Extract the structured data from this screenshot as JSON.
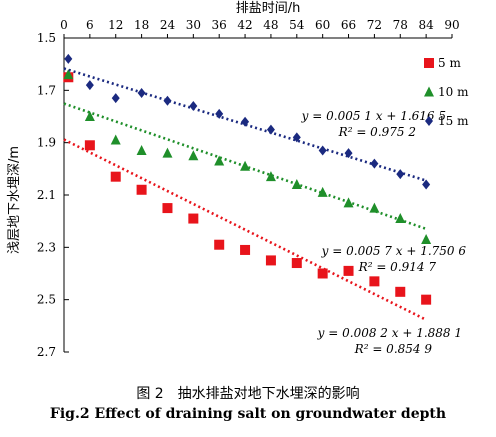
{
  "chart_data": {
    "type": "scatter",
    "xlabel": "排盐时间/h",
    "ylabel": "浅层地下水埋深/m",
    "x_ticks": [
      0,
      6,
      12,
      18,
      24,
      30,
      36,
      42,
      48,
      54,
      60,
      66,
      72,
      78,
      84,
      90
    ],
    "y_ticks": [
      "1.5",
      "1.7",
      "1.9",
      "2.1",
      "2.3",
      "2.5",
      "2.7"
    ],
    "xlim": [
      0,
      90
    ],
    "ylim": [
      1.5,
      2.7
    ],
    "y_inverted": true,
    "x_axis_position": "top",
    "legend_position": "right",
    "series": [
      {
        "name": "5 m",
        "color": "#e8141b",
        "marker": "square",
        "x": [
          1,
          6,
          12,
          18,
          24,
          30,
          36,
          42,
          48,
          54,
          60,
          66,
          72,
          78,
          84
        ],
        "y": [
          1.65,
          1.91,
          2.03,
          2.08,
          2.15,
          2.19,
          2.29,
          2.31,
          2.35,
          2.36,
          2.4,
          2.39,
          2.43,
          2.47,
          2.5
        ],
        "trend": {
          "slope": 0.0082,
          "intercept": 1.8881
        },
        "equation": "y = 0.008 2 x + 1.888 1",
        "r2": "R² = 0.854 9"
      },
      {
        "name": "10 m",
        "color": "#1f8f2a",
        "marker": "triangle",
        "x": [
          1,
          6,
          12,
          18,
          24,
          30,
          36,
          42,
          48,
          54,
          60,
          66,
          72,
          78,
          84
        ],
        "y": [
          1.64,
          1.8,
          1.89,
          1.93,
          1.94,
          1.95,
          1.97,
          1.99,
          2.03,
          2.06,
          2.09,
          2.13,
          2.15,
          2.19,
          2.27
        ],
        "trend": {
          "slope": 0.0057,
          "intercept": 1.7506
        },
        "equation": "y = 0.005 7 x + 1.750 6",
        "r2": "R² = 0.914 7"
      },
      {
        "name": "15 m",
        "color": "#1b2a80",
        "marker": "diamond",
        "x": [
          1,
          6,
          12,
          18,
          24,
          30,
          36,
          42,
          48,
          54,
          60,
          66,
          72,
          78,
          84
        ],
        "y": [
          1.58,
          1.68,
          1.73,
          1.71,
          1.74,
          1.76,
          1.79,
          1.82,
          1.85,
          1.88,
          1.93,
          1.94,
          1.98,
          2.02,
          2.06
        ],
        "trend": {
          "slope": 0.0051,
          "intercept": 1.6165
        },
        "equation": "y = 0.005 1 x + 1.616 5",
        "r2": "R² = 0.975 2"
      }
    ]
  },
  "caption": {
    "cn": "图 2　抽水排盐对地下水埋深的影响",
    "en": "Fig.2 Effect of draining salt on groundwater depth"
  }
}
